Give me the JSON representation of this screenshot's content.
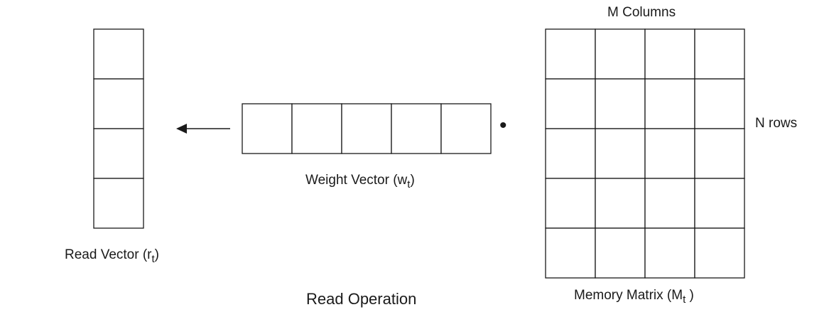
{
  "read_vector": {
    "label_prefix": "Read Vector (r",
    "label_sub": "t",
    "label_suffix": ")",
    "cells": 4
  },
  "weight_vector": {
    "label_prefix": "Weight Vector (w",
    "label_sub": "t",
    "label_suffix": ")",
    "cells": 5
  },
  "memory_matrix": {
    "label_prefix": "Memory Matrix (M",
    "label_sub": "t",
    "label_suffix": " )",
    "rows": 5,
    "columns": 4,
    "columns_label": "M Columns",
    "rows_label": "N rows"
  },
  "operator_symbol": "•",
  "title": "Read Operation",
  "colors": {
    "stroke": "#1a1a1a",
    "fill": "#ffffff"
  }
}
